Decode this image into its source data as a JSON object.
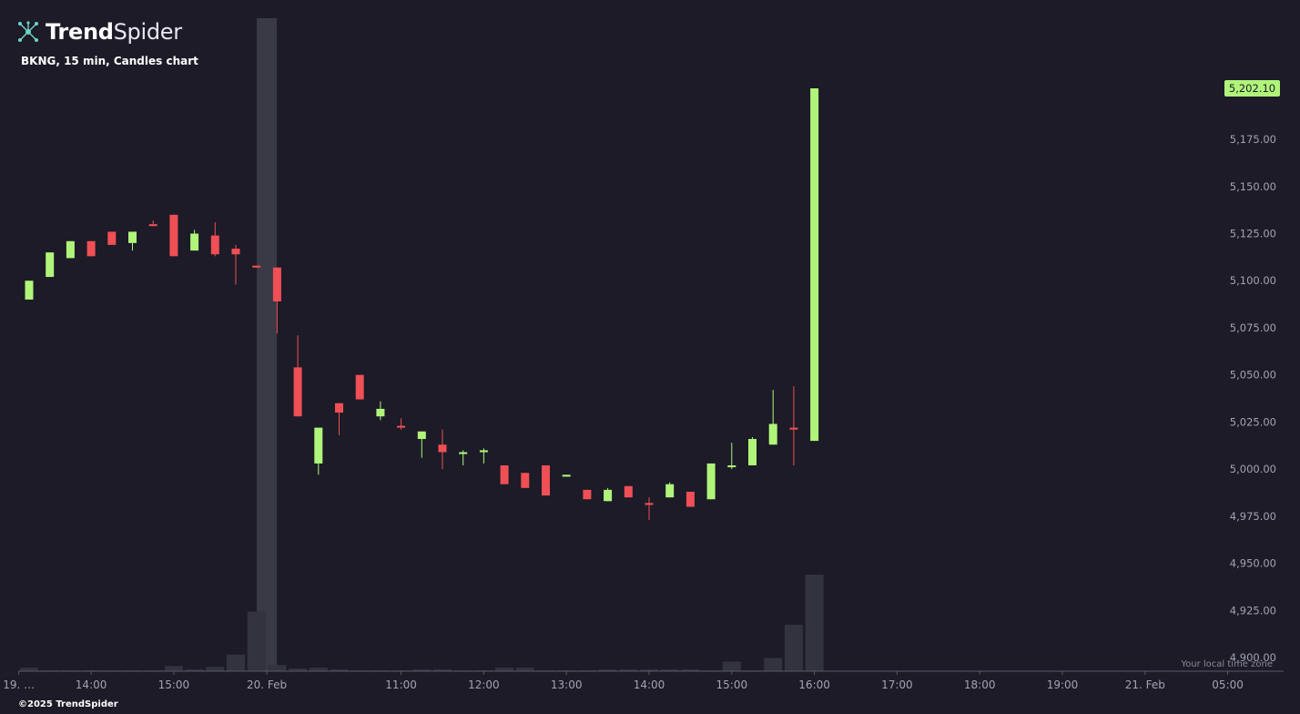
{
  "brand": {
    "name_bold": "Trend",
    "name_light": "Spider",
    "copyright": "©2025 TrendSpider"
  },
  "colors": {
    "background": "#1c1b27",
    "up": "#b0f57a",
    "down": "#ef4f55",
    "volume": "#33323f",
    "highlight": "#3a3946",
    "axis_text": "#a3a3b2",
    "last_price_bg": "#b0f57a"
  },
  "timezone_note": "Your local time zone",
  "chart_data": {
    "type": "candlestick",
    "title": "BKNG, 15 min, Candles chart",
    "symbol": "BKNG",
    "interval": "15 min",
    "last_price_label": "5,202.10",
    "last_price": 5202.1,
    "ylim": [
      4900,
      5212
    ],
    "y_ticks": [
      "4,900.00",
      "4,925.00",
      "4,950.00",
      "4,975.00",
      "5,000.00",
      "5,025.00",
      "5,050.00",
      "5,075.00",
      "5,100.00",
      "5,125.00",
      "5,150.00",
      "5,175.00"
    ],
    "y_tick_values": [
      4900,
      4925,
      4950,
      4975,
      5000,
      5025,
      5050,
      5075,
      5100,
      5125,
      5150,
      5175
    ],
    "x_tick_labels": [
      {
        "label": "19. …",
        "bar": -0.5
      },
      {
        "label": "14:00",
        "bar": 3
      },
      {
        "label": "15:00",
        "bar": 7
      },
      {
        "label": "20. Feb",
        "bar": 11.5
      },
      {
        "label": "11:00",
        "bar": 18
      },
      {
        "label": "12:00",
        "bar": 22
      },
      {
        "label": "13:00",
        "bar": 26
      },
      {
        "label": "14:00",
        "bar": 30
      },
      {
        "label": "15:00",
        "bar": 34
      },
      {
        "label": "16:00",
        "bar": 38
      },
      {
        "label": "17:00",
        "bar": 42
      },
      {
        "label": "18:00",
        "bar": 46
      },
      {
        "label": "19:00",
        "bar": 50
      },
      {
        "label": "21. Feb",
        "bar": 54
      },
      {
        "label": "05:00",
        "bar": 58
      }
    ],
    "session_break_bar": 11.5,
    "candles": [
      {
        "o": 5090,
        "h": 5100,
        "l": 5090,
        "c": 5100,
        "v": 4
      },
      {
        "o": 5102,
        "h": 5115,
        "l": 5102,
        "c": 5115,
        "v": 1
      },
      {
        "o": 5112,
        "h": 5121,
        "l": 5112,
        "c": 5121,
        "v": 1
      },
      {
        "o": 5121,
        "h": 5121,
        "l": 5113,
        "c": 5113,
        "v": 1
      },
      {
        "o": 5126,
        "h": 5126,
        "l": 5119,
        "c": 5119,
        "v": 1
      },
      {
        "o": 5120,
        "h": 5126,
        "l": 5116,
        "c": 5126,
        "v": 1
      },
      {
        "o": 5130,
        "h": 5132,
        "l": 5129,
        "c": 5129,
        "v": 1
      },
      {
        "o": 5135,
        "h": 5135,
        "l": 5113,
        "c": 5113,
        "v": 6
      },
      {
        "o": 5116,
        "h": 5127,
        "l": 5116,
        "c": 5125,
        "v": 2
      },
      {
        "o": 5124,
        "h": 5131,
        "l": 5113,
        "c": 5114,
        "v": 5
      },
      {
        "o": 5117,
        "h": 5119,
        "l": 5098,
        "c": 5114,
        "v": 19
      },
      {
        "o": 5108,
        "h": 5108,
        "l": 5107,
        "c": 5107,
        "v": 68
      },
      {
        "o": 5107,
        "h": 5107,
        "l": 5072,
        "c": 5089,
        "v": 7
      },
      {
        "o": 5054,
        "h": 5071,
        "l": 5028,
        "c": 5028,
        "v": 3
      },
      {
        "o": 5003,
        "h": 5022,
        "l": 4997,
        "c": 5022,
        "v": 4
      },
      {
        "o": 5035,
        "h": 5035,
        "l": 5018,
        "c": 5030,
        "v": 2
      },
      {
        "o": 5050,
        "h": 5050,
        "l": 5037,
        "c": 5037,
        "v": 1
      },
      {
        "o": 5028,
        "h": 5036,
        "l": 5026,
        "c": 5032,
        "v": 1
      },
      {
        "o": 5023,
        "h": 5027,
        "l": 5021,
        "c": 5022,
        "v": 1
      },
      {
        "o": 5016,
        "h": 5020,
        "l": 5006,
        "c": 5020,
        "v": 2
      },
      {
        "o": 5013,
        "h": 5021,
        "l": 5000,
        "c": 5009,
        "v": 2
      },
      {
        "o": 5008,
        "h": 5010,
        "l": 5002,
        "c": 5009,
        "v": 1
      },
      {
        "o": 5009,
        "h": 5011,
        "l": 5003,
        "c": 5010,
        "v": 1
      },
      {
        "o": 5002,
        "h": 5002,
        "l": 4992,
        "c": 4992,
        "v": 4
      },
      {
        "o": 4998,
        "h": 4998,
        "l": 4990,
        "c": 4990,
        "v": 4
      },
      {
        "o": 5002,
        "h": 5002,
        "l": 4986,
        "c": 4986,
        "v": 1
      },
      {
        "o": 4996,
        "h": 4997,
        "l": 4996,
        "c": 4997,
        "v": 1
      },
      {
        "o": 4989,
        "h": 4989,
        "l": 4984,
        "c": 4984,
        "v": 1
      },
      {
        "o": 4983,
        "h": 4990,
        "l": 4983,
        "c": 4989,
        "v": 2
      },
      {
        "o": 4991,
        "h": 4991,
        "l": 4985,
        "c": 4985,
        "v": 2
      },
      {
        "o": 4982,
        "h": 4985,
        "l": 4973,
        "c": 4981,
        "v": 2
      },
      {
        "o": 4985,
        "h": 4993,
        "l": 4985,
        "c": 4992,
        "v": 2
      },
      {
        "o": 4988,
        "h": 4988,
        "l": 4980,
        "c": 4980,
        "v": 2
      },
      {
        "o": 4984,
        "h": 5003,
        "l": 4984,
        "c": 5003,
        "v": 1
      },
      {
        "o": 5001,
        "h": 5014,
        "l": 5000,
        "c": 5002,
        "v": 11
      },
      {
        "o": 5002,
        "h": 5017,
        "l": 5002,
        "c": 5016,
        "v": 1
      },
      {
        "o": 5013,
        "h": 5042,
        "l": 5013,
        "c": 5024,
        "v": 15
      },
      {
        "o": 5022,
        "h": 5044,
        "l": 5002,
        "c": 5021,
        "v": 53
      },
      {
        "o": 5015,
        "h": 5202.1,
        "l": 5015,
        "c": 5202.1,
        "v": 110
      }
    ]
  }
}
